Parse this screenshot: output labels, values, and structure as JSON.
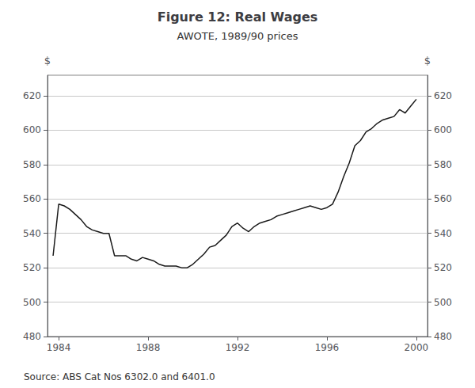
{
  "chart_data": {
    "type": "line",
    "title": "Figure 12: Real Wages",
    "subtitle": "AWOTE, 1989/90 prices",
    "ylabel": "$",
    "y2label": "$",
    "annotations": [
      "Source: ABS Cat Nos 6302.0 and 6401.0"
    ],
    "color": "#1a1a1a",
    "grid": true,
    "xlim": [
      1983.5,
      2000.5
    ],
    "xticks": [
      1984,
      1988,
      1992,
      1996,
      2000
    ],
    "ylim": [
      480,
      632
    ],
    "yticks": [
      480,
      500,
      520,
      540,
      560,
      580,
      600,
      620
    ],
    "y2lim": [
      480,
      632
    ],
    "y2ticks": [
      480,
      500,
      520,
      540,
      560,
      580,
      600,
      620
    ],
    "x": [
      1983.75,
      1984.0,
      1984.25,
      1984.5,
      1984.75,
      1985.0,
      1985.25,
      1985.5,
      1985.75,
      1986.0,
      1986.25,
      1986.5,
      1986.75,
      1987.0,
      1987.25,
      1987.5,
      1987.75,
      1988.0,
      1988.25,
      1988.5,
      1988.75,
      1989.0,
      1989.25,
      1989.5,
      1989.75,
      1990.0,
      1990.25,
      1990.5,
      1990.75,
      1991.0,
      1991.25,
      1991.5,
      1991.75,
      1992.0,
      1992.25,
      1992.5,
      1992.75,
      1993.0,
      1993.25,
      1993.5,
      1993.75,
      1994.0,
      1994.25,
      1994.5,
      1994.75,
      1995.0,
      1995.25,
      1995.5,
      1995.75,
      1996.0,
      1996.25,
      1996.5,
      1996.75,
      1997.0,
      1997.25,
      1997.5,
      1997.75,
      1998.0,
      1998.25,
      1998.5,
      1998.75,
      1999.0,
      1999.25,
      1999.5,
      1999.75,
      2000.0
    ],
    "values": [
      527,
      557,
      556,
      554,
      551,
      548,
      544,
      542,
      541,
      540,
      540,
      527,
      527,
      527,
      525,
      524,
      526,
      525,
      524,
      522,
      521,
      521,
      521,
      520,
      520,
      522,
      525,
      528,
      532,
      533,
      536,
      539,
      544,
      546,
      543,
      541,
      544,
      546,
      547,
      548,
      550,
      551,
      552,
      553,
      554,
      555,
      556,
      555,
      554,
      555,
      557,
      564,
      573,
      581,
      591,
      594,
      599,
      601,
      604,
      606,
      607,
      608,
      612,
      610,
      614,
      618
    ]
  }
}
